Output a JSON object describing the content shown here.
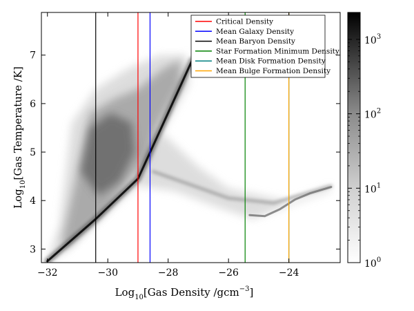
{
  "chart_data": {
    "type": "heatmap",
    "xlabel_pre": "Log",
    "xlabel_sub": "10",
    "xlabel_main": "[Gas Density /gcm",
    "xlabel_sup": "−3",
    "xlabel_post": "]",
    "ylabel_pre": "Log",
    "ylabel_sub": "10",
    "ylabel_main": "[Gas Temperature /K]",
    "xlim": [
      -32.2,
      -22.3
    ],
    "ylim": [
      2.72,
      7.88
    ],
    "xticks": [
      -32,
      -30,
      -28,
      -26,
      -24
    ],
    "xtick_labels": [
      "−32",
      "−30",
      "−28",
      "−26",
      "−24"
    ],
    "yticks": [
      3,
      4,
      5,
      6,
      7
    ],
    "ytick_labels": [
      "3",
      "4",
      "5",
      "6",
      "7"
    ],
    "colorbar": {
      "scale": "log",
      "min": 1,
      "max": 2300,
      "ticks": [
        1,
        10,
        100,
        1000
      ],
      "tick_base": "10",
      "tick_exponents": [
        "0",
        "1",
        "2",
        "3"
      ]
    },
    "vlines": [
      {
        "name": "Critical Density",
        "x": -29.0,
        "color": "#ff0000"
      },
      {
        "name": "Mean Galaxy Density",
        "x": -28.6,
        "color": "#0000ff"
      },
      {
        "name": "Mean Baryon Density",
        "x": -30.4,
        "color": "#000000"
      },
      {
        "name": "Star Formation Minimum Density",
        "x": -25.45,
        "color": "#008000"
      },
      {
        "name": "Mean Disk Formation Density",
        "x": -24.0,
        "color": "#008080"
      },
      {
        "name": "Mean Bulge Formation Density",
        "x": -24.0,
        "color": "#ffa500"
      }
    ],
    "legend_position": "top-right",
    "density_features": [
      {
        "x": [
          -32.0,
          -30.4,
          -29.0,
          -27.2
        ],
        "y": [
          2.75,
          3.62,
          4.45,
          6.9
        ],
        "note_role": "adiabatic-ridge"
      },
      {
        "x": [
          -28.5,
          -26.0,
          -24.5,
          -22.6
        ],
        "y": [
          4.6,
          4.05,
          3.95,
          4.3
        ],
        "note_role": "cooling-branch"
      }
    ]
  }
}
